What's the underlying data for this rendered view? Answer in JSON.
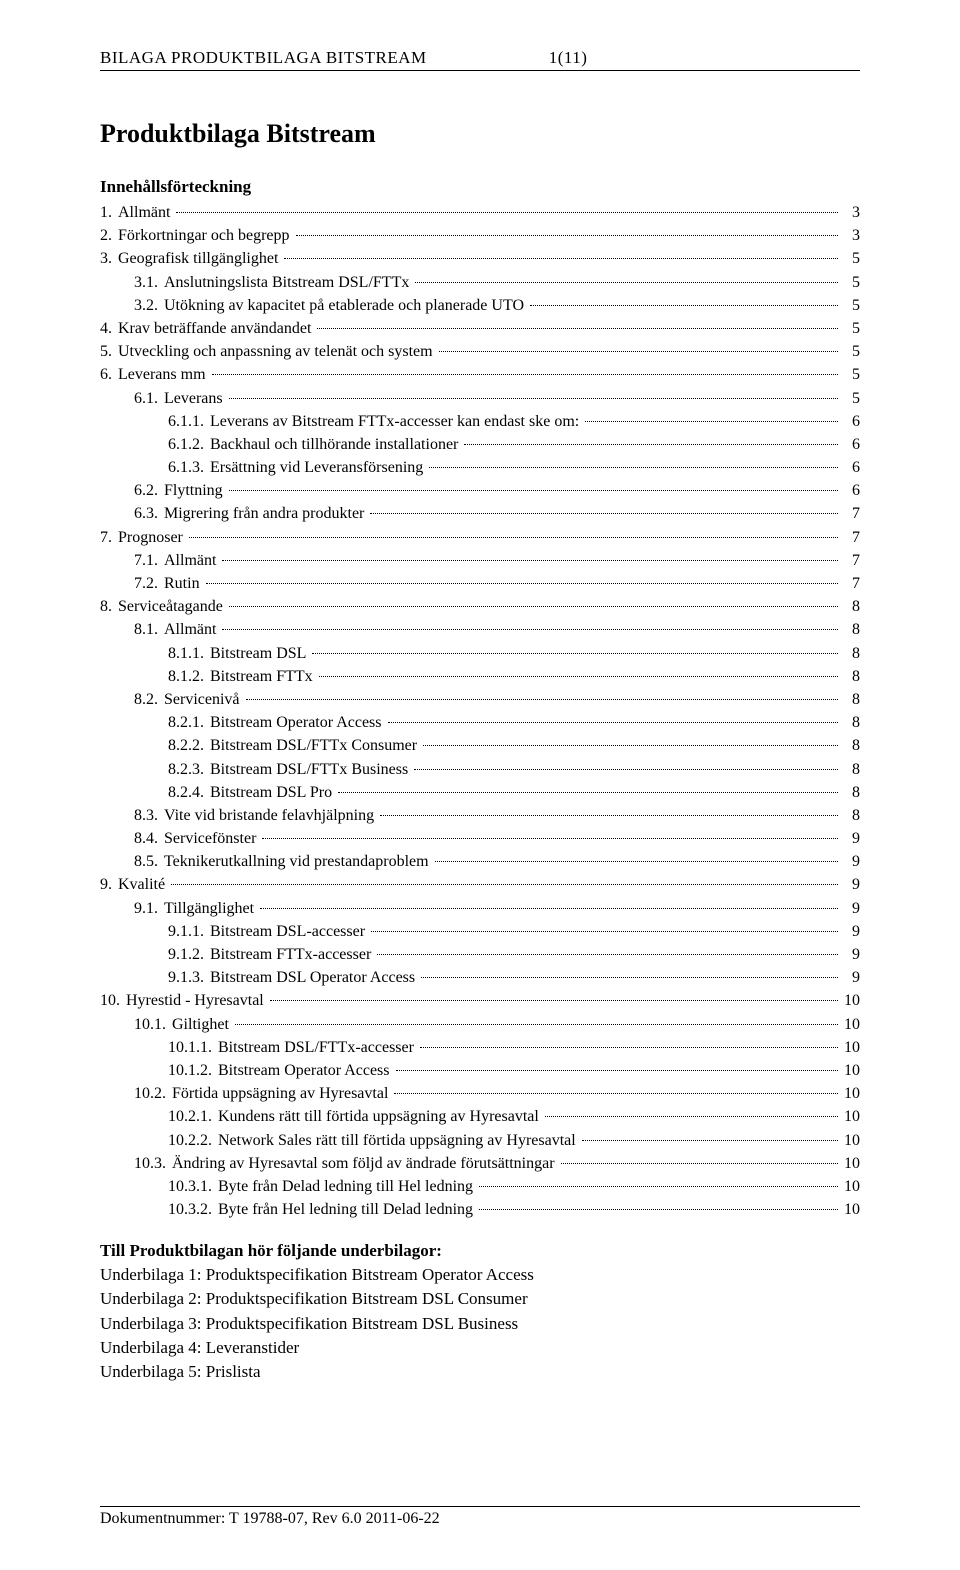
{
  "header": {
    "title": "BILAGA PRODUKTBILAGA BITSTREAM",
    "page": "1(11)"
  },
  "doc_title": "Produktbilaga Bitstream",
  "toc_heading": "Innehållsförteckning",
  "toc": [
    {
      "indent": 0,
      "num": "1.",
      "label": "Allmänt",
      "page": "3"
    },
    {
      "indent": 0,
      "num": "2.",
      "label": "Förkortningar och begrepp",
      "page": "3"
    },
    {
      "indent": 0,
      "num": "3.",
      "label": "Geografisk tillgänglighet",
      "page": "5"
    },
    {
      "indent": 1,
      "num": "3.1.",
      "label": "Anslutningslista Bitstream DSL/FTTx",
      "page": "5"
    },
    {
      "indent": 1,
      "num": "3.2.",
      "label": "Utökning av kapacitet på etablerade och planerade UTO",
      "page": "5"
    },
    {
      "indent": 0,
      "num": "4.",
      "label": "Krav beträffande användandet",
      "page": "5"
    },
    {
      "indent": 0,
      "num": "5.",
      "label": "Utveckling och anpassning av telenät och system",
      "page": "5"
    },
    {
      "indent": 0,
      "num": "6.",
      "label": "Leverans mm",
      "page": "5"
    },
    {
      "indent": 1,
      "num": "6.1.",
      "label": "Leverans",
      "page": "5"
    },
    {
      "indent": 2,
      "num": "6.1.1.",
      "label": "Leverans av Bitstream FTTx-accesser kan endast ske om:",
      "page": "6"
    },
    {
      "indent": 2,
      "num": "6.1.2.",
      "label": "Backhaul och tillhörande installationer",
      "page": "6"
    },
    {
      "indent": 2,
      "num": "6.1.3.",
      "label": "Ersättning vid Leveransförsening",
      "page": "6"
    },
    {
      "indent": 1,
      "num": "6.2.",
      "label": "Flyttning",
      "page": "6"
    },
    {
      "indent": 1,
      "num": "6.3.",
      "label": "Migrering från andra produkter",
      "page": "7"
    },
    {
      "indent": 0,
      "num": "7.",
      "label": "Prognoser",
      "page": "7"
    },
    {
      "indent": 1,
      "num": "7.1.",
      "label": "Allmänt",
      "page": "7"
    },
    {
      "indent": 1,
      "num": "7.2.",
      "label": "Rutin",
      "page": "7"
    },
    {
      "indent": 0,
      "num": "8.",
      "label": "Serviceåtagande",
      "page": "8"
    },
    {
      "indent": 1,
      "num": "8.1.",
      "label": "Allmänt",
      "page": "8"
    },
    {
      "indent": 2,
      "num": "8.1.1.",
      "label": "Bitstream DSL",
      "page": "8"
    },
    {
      "indent": 2,
      "num": "8.1.2.",
      "label": "Bitstream FTTx",
      "page": "8"
    },
    {
      "indent": 1,
      "num": "8.2.",
      "label": "Servicenivå",
      "page": "8"
    },
    {
      "indent": 2,
      "num": "8.2.1.",
      "label": "Bitstream Operator Access",
      "page": "8"
    },
    {
      "indent": 2,
      "num": "8.2.2.",
      "label": "Bitstream DSL/FTTx Consumer",
      "page": "8"
    },
    {
      "indent": 2,
      "num": "8.2.3.",
      "label": "Bitstream DSL/FTTx Business",
      "page": "8"
    },
    {
      "indent": 2,
      "num": "8.2.4.",
      "label": "Bitstream DSL Pro",
      "page": "8"
    },
    {
      "indent": 1,
      "num": "8.3.",
      "label": "Vite vid bristande felavhjälpning",
      "page": "8"
    },
    {
      "indent": 1,
      "num": "8.4.",
      "label": "Servicefönster",
      "page": "9"
    },
    {
      "indent": 1,
      "num": "8.5.",
      "label": "Teknikerutkallning vid prestandaproblem",
      "page": "9"
    },
    {
      "indent": 0,
      "num": "9.",
      "label": "Kvalité",
      "page": "9"
    },
    {
      "indent": 1,
      "num": "9.1.",
      "label": "Tillgänglighet",
      "page": "9"
    },
    {
      "indent": 2,
      "num": "9.1.1.",
      "label": "Bitstream DSL-accesser",
      "page": "9"
    },
    {
      "indent": 2,
      "num": "9.1.2.",
      "label": "Bitstream FTTx-accesser",
      "page": "9"
    },
    {
      "indent": 2,
      "num": "9.1.3.",
      "label": "Bitstream DSL Operator Access",
      "page": "9"
    },
    {
      "indent": 0,
      "num": "10.",
      "label": "Hyrestid - Hyresavtal",
      "page": "10"
    },
    {
      "indent": 1,
      "num": "10.1.",
      "label": "Giltighet",
      "page": "10"
    },
    {
      "indent": 2,
      "num": "10.1.1.",
      "label": "Bitstream DSL/FTTx-accesser",
      "page": "10"
    },
    {
      "indent": 2,
      "num": "10.1.2.",
      "label": "Bitstream Operator Access",
      "page": "10"
    },
    {
      "indent": 1,
      "num": "10.2.",
      "label": "Förtida uppsägning av Hyresavtal",
      "page": "10"
    },
    {
      "indent": 2,
      "num": "10.2.1.",
      "label": "Kundens rätt till förtida uppsägning av Hyresavtal",
      "page": "10"
    },
    {
      "indent": 2,
      "num": "10.2.2.",
      "label": "Network Sales rätt till förtida uppsägning av Hyresavtal",
      "page": "10"
    },
    {
      "indent": 1,
      "num": "10.3.",
      "label": "Ändring av Hyresavtal som följd av ändrade förutsättningar",
      "page": "10"
    },
    {
      "indent": 2,
      "num": "10.3.1.",
      "label": "Byte från Delad ledning till Hel ledning",
      "page": "10"
    },
    {
      "indent": 2,
      "num": "10.3.2.",
      "label": "Byte från Hel ledning till Delad ledning",
      "page": "10"
    }
  ],
  "sub_heading": "Till Produktbilagan hör följande underbilagor:",
  "sub_items": [
    "Underbilaga 1: Produktspecifikation Bitstream Operator Access",
    "Underbilaga 2: Produktspecifikation Bitstream DSL  Consumer",
    "Underbilaga 3: Produktspecifikation Bitstream DSL  Business",
    "Underbilaga 4: Leveranstider",
    "Underbilaga 5: Prislista"
  ],
  "footer": "Dokumentnummer: T 19788-07, Rev 6.0 2011-06-22"
}
